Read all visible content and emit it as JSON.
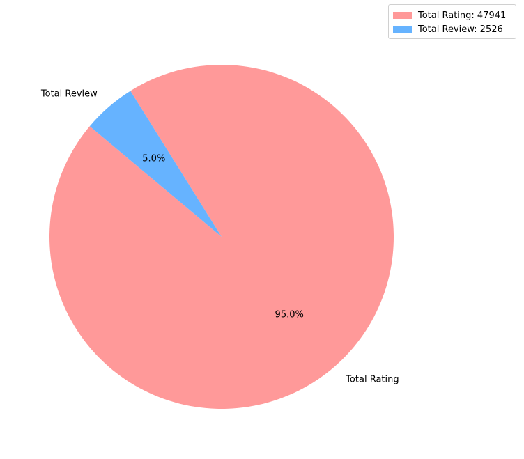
{
  "chart_data": {
    "type": "pie",
    "start_angle_deg": 140,
    "direction": "counterclockwise",
    "slices": [
      {
        "label": "Total Rating",
        "value": 47941,
        "pct_label": "95.0%",
        "color": "#ff9999"
      },
      {
        "label": "Total Review",
        "value": 2526,
        "pct_label": "5.0%",
        "color": "#66b3ff"
      }
    ],
    "legend": {
      "placement": "top-right",
      "entries": [
        "Total Rating: 47941",
        "Total Review: 2526"
      ]
    }
  }
}
